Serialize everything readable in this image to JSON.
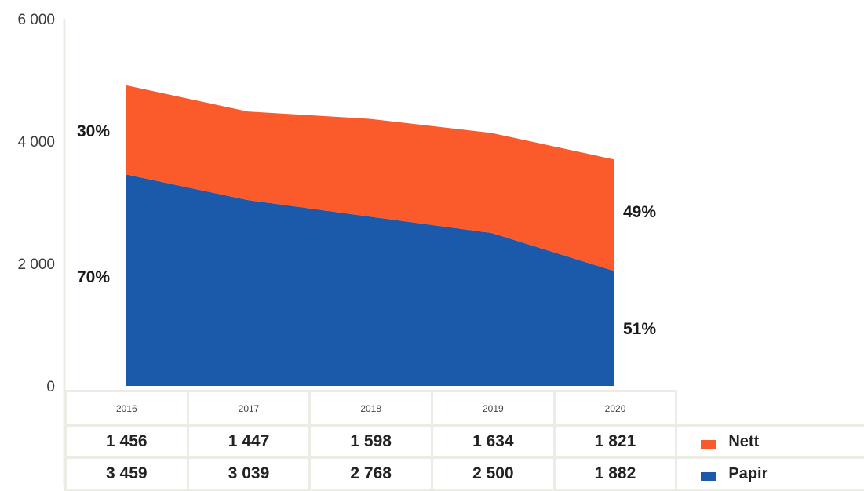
{
  "chart_data": {
    "type": "area",
    "stacked": true,
    "categories": [
      "2016",
      "2017",
      "2018",
      "2019",
      "2020"
    ],
    "series": [
      {
        "name": "Papir",
        "values": [
          3459,
          3039,
          2768,
          2500,
          1882
        ],
        "color": "#1b5aab"
      },
      {
        "name": "Nett",
        "values": [
          1456,
          1447,
          1598,
          1634,
          1821
        ],
        "color": "#fb5a2a"
      }
    ],
    "ylim": [
      0,
      6000
    ],
    "yticks": [
      {
        "value": 0,
        "label": "0"
      },
      {
        "value": 2000,
        "label": "2 000"
      },
      {
        "value": 4000,
        "label": "4 000"
      },
      {
        "value": 6000,
        "label": "6 000"
      }
    ],
    "annotations": {
      "nett_2016": "30%",
      "papir_2016": "70%",
      "nett_2020": "49%",
      "papir_2020": "51%"
    },
    "table": {
      "years": [
        "2016",
        "2017",
        "2018",
        "2019",
        "2020"
      ],
      "nett_labels": [
        "1 456",
        "1 447",
        "1 598",
        "1 634",
        "1 821"
      ],
      "papir_labels": [
        "3 459",
        "3 039",
        "2 768",
        "2 500",
        "1 882"
      ]
    },
    "legend": [
      {
        "label": "Nett",
        "color": "#fb5a2a"
      },
      {
        "label": "Papir",
        "color": "#1b5aab"
      }
    ]
  }
}
